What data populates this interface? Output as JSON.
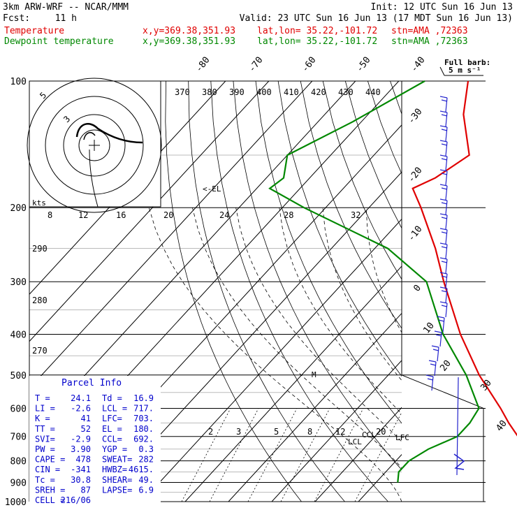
{
  "header": {
    "model": "3km ARW-WRF -- NCAR/MMM",
    "init": "Init: 12 UTC Sun 16 Jun 13",
    "fcst_label": "Fcst:",
    "fcst_hours": "11 h",
    "valid": "Valid: 23 UTC Sun 16 Jun 13 (17 MDT Sun 16 Jun 13)"
  },
  "legend": [
    {
      "name": "Temperature",
      "color": "#e00000",
      "xy": "x,y=369.38,351.93",
      "latlon": "lat,lon= 35.22,-101.72",
      "stn": "stn=AMA ,72363"
    },
    {
      "name": "Dewpoint temperature",
      "color": "#008800",
      "xy": "x,y=369.38,351.93",
      "latlon": "lat,lon= 35.22,-101.72",
      "stn": "stn=AMA ,72363"
    }
  ],
  "barb_legend": {
    "line1": "Full barb:",
    "line2": "5 m s⁻¹"
  },
  "hodograph": {
    "units": "kts",
    "ring_labels": [
      "5",
      "3"
    ]
  },
  "chart_data": {
    "type": "line",
    "title": "",
    "xlabel": "",
    "ylabel": "",
    "pressure_levels": [
      100,
      200,
      300,
      400,
      500,
      600,
      700,
      800,
      900,
      1000
    ],
    "pressure_range": [
      100,
      1000
    ],
    "temp_ticks_top": [
      "-80",
      "-70",
      "-60",
      "-50",
      "-40"
    ],
    "temp_ticks_right": [
      "-30",
      "-20",
      "-10",
      "0",
      "10",
      "20",
      "30",
      "40"
    ],
    "theta_labels": [
      "370",
      "380",
      "390",
      "400",
      "410",
      "420",
      "430",
      "440"
    ],
    "theta_left_labels": [
      "290",
      "280",
      "270"
    ],
    "mixing_ratio_labels": [
      "2",
      "3",
      "5",
      "8",
      "12",
      "20"
    ],
    "thetae_labels_top": [
      "8",
      "12",
      "16",
      "20",
      "24",
      "28",
      "32"
    ],
    "annotations": [
      "<-EL",
      "LCL",
      "CCL",
      "LFC",
      "M"
    ],
    "series": [
      {
        "name": "Temperature",
        "color": "#e00000",
        "points": [
          [
            100,
            -74
          ],
          [
            120,
            -68
          ],
          [
            150,
            -58
          ],
          [
            170,
            -61
          ],
          [
            180,
            -64
          ],
          [
            200,
            -58
          ],
          [
            250,
            -46
          ],
          [
            300,
            -37
          ],
          [
            400,
            -22
          ],
          [
            500,
            -9
          ],
          [
            600,
            3
          ],
          [
            650,
            8
          ],
          [
            700,
            13
          ],
          [
            750,
            19
          ],
          [
            800,
            24
          ],
          [
            850,
            28
          ],
          [
            870,
            30
          ],
          [
            900,
            31
          ]
        ]
      },
      {
        "name": "Dewpoint temperature",
        "color": "#008800",
        "points": [
          [
            100,
            -84
          ],
          [
            125,
            -92
          ],
          [
            150,
            -100
          ],
          [
            170,
            -96
          ],
          [
            180,
            -97
          ],
          [
            200,
            -85
          ],
          [
            250,
            -57
          ],
          [
            300,
            -41
          ],
          [
            400,
            -26
          ],
          [
            500,
            -12
          ],
          [
            600,
            -2
          ],
          [
            650,
            -1
          ],
          [
            700,
            -1
          ],
          [
            750,
            -5
          ],
          [
            800,
            -7
          ],
          [
            850,
            -7
          ],
          [
            900,
            -5
          ]
        ]
      }
    ]
  },
  "parcel_info": {
    "title": "Parcel Info",
    "rows": [
      [
        "T  =",
        "24.1",
        "Td =",
        "16.9"
      ],
      [
        "LI =",
        "-2.6",
        "LCL =",
        "717."
      ],
      [
        "K  =",
        "41",
        "LFC=",
        "703."
      ],
      [
        "TT =",
        "52",
        "EL =",
        "180."
      ],
      [
        "SVI=",
        "-2.9",
        "CCL=",
        "692."
      ],
      [
        "PW =",
        "3.90",
        "YGP =",
        "0.3"
      ],
      [
        "CAPE =",
        "478",
        "SWEAT=",
        "282"
      ],
      [
        "CIN =",
        "-341",
        "HWBZ=",
        "4615."
      ],
      [
        "Tc =",
        "30.8",
        "SHEAR=",
        "49."
      ],
      [
        "SREH =",
        "87",
        "LAPSE=",
        "6.9"
      ],
      [
        "CELL =",
        "216/06",
        "",
        ""
      ]
    ]
  }
}
